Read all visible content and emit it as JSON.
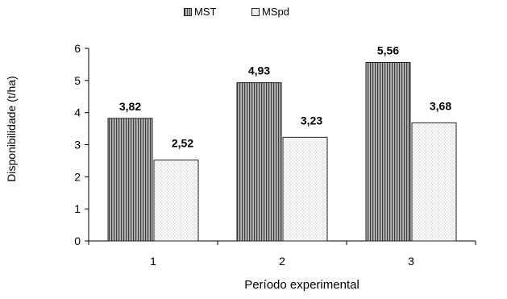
{
  "chart_data": {
    "type": "bar",
    "title": "",
    "xlabel": "Período experimental",
    "ylabel": "Disponibilidade (t/ha)",
    "categories": [
      "1",
      "2",
      "3"
    ],
    "ylim": [
      0,
      6
    ],
    "yticks": [
      "0",
      "1",
      "2",
      "3",
      "4",
      "5",
      "6"
    ],
    "grid": false,
    "legend_position": "top",
    "series": [
      {
        "name": "MST",
        "values": [
          3.82,
          4.93,
          5.56
        ],
        "labels": [
          "3,82",
          "4,93",
          "5,56"
        ],
        "pattern": "vertical-stripes",
        "color": "#555555"
      },
      {
        "name": "MSpd",
        "values": [
          2.52,
          3.23,
          3.68
        ],
        "labels": [
          "2,52",
          "3,23",
          "3,68"
        ],
        "pattern": "dotted",
        "color": "#d0d0d0"
      }
    ]
  }
}
